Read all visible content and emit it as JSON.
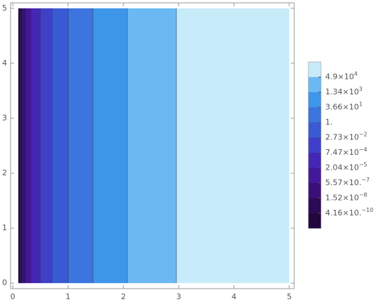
{
  "chart_data": {
    "type": "contour",
    "x_domain": [
      0.1,
      5
    ],
    "y_domain": [
      0,
      5
    ],
    "boundaries": [
      0.13,
      0.17,
      0.24,
      0.34,
      0.5,
      0.71,
      1.0,
      1.45,
      2.07,
      2.96
    ],
    "colors": [
      "#21073d",
      "#2d0a55",
      "#3a0f7a",
      "#43189a",
      "#4527b5",
      "#3f3fc8",
      "#3a5ad3",
      "#3b75dd",
      "#3e96e8",
      "#6bb8f2",
      "#c8ebfa"
    ],
    "xlim": [
      -0.04,
      5.09
    ],
    "ylim": [
      -0.1,
      5.1
    ],
    "xticks": [
      0,
      1,
      2,
      3,
      4,
      5
    ],
    "yticks": [
      0,
      1,
      2,
      3,
      4,
      5
    ],
    "legend_labels": [
      {
        "base": "4.9×10",
        "exp": "4"
      },
      {
        "base": "1.34×10",
        "exp": "3"
      },
      {
        "base": "3.66×10",
        "exp": "1"
      },
      {
        "base": "1."
      },
      {
        "base": "2.73×10",
        "exp": "−2"
      },
      {
        "base": "7.47×10",
        "exp": "−4"
      },
      {
        "base": "2.04×10",
        "exp": "−5"
      },
      {
        "base": "5.57×10.",
        "exp": "−7"
      },
      {
        "base": "1.52×10",
        "exp": "−8"
      },
      {
        "base": "4.16×10.",
        "exp": "−10"
      }
    ]
  }
}
